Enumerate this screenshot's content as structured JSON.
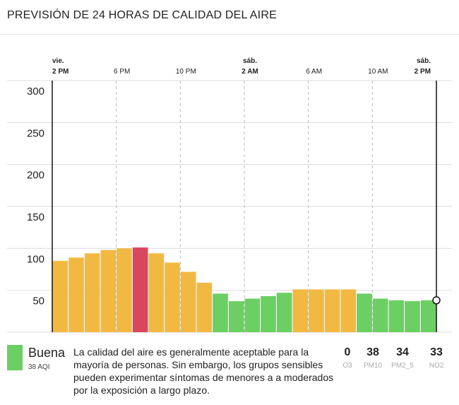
{
  "header": {
    "title": "PREVISIÓN DE 24 HORAS DE CALIDAD DEL AIRE"
  },
  "chart_data": {
    "type": "bar",
    "categories": [
      null,
      null,
      null,
      null,
      null,
      null,
      null,
      null,
      null,
      null,
      null,
      null,
      null,
      null,
      null,
      null,
      null,
      null,
      null,
      null,
      null,
      null,
      null,
      null
    ],
    "values": [
      85,
      89,
      94,
      98,
      100,
      101,
      94,
      83,
      72,
      59,
      46,
      37,
      40,
      43,
      47,
      51,
      51,
      51,
      51,
      46,
      40,
      38,
      37,
      38
    ],
    "colors": [
      "#f2b942",
      "#f2b942",
      "#f2b942",
      "#f2b942",
      "#f2b942",
      "#d9475f",
      "#f2b942",
      "#f2b942",
      "#f2b942",
      "#f2b942",
      "#6ccf63",
      "#6ccf63",
      "#6ccf63",
      "#6ccf63",
      "#6ccf63",
      "#f2b942",
      "#f2b942",
      "#f2b942",
      "#f2b942",
      "#6ccf63",
      "#6ccf63",
      "#6ccf63",
      "#6ccf63",
      "#6ccf63"
    ],
    "xlim": [
      0,
      24
    ],
    "xticks": [
      {
        "value": 0,
        "label": "2 PM",
        "day": "vie."
      },
      {
        "value": 4,
        "label": "6 PM"
      },
      {
        "value": 8,
        "label": "10 PM"
      },
      {
        "value": 12,
        "label": "2 AM",
        "day": "sáb."
      },
      {
        "value": 16,
        "label": "6 AM"
      },
      {
        "value": 20,
        "label": "10 AM"
      },
      {
        "value": 24,
        "label": "2 PM",
        "day": "sáb."
      }
    ],
    "ylim": [
      0,
      300
    ],
    "yticks": [
      50,
      100,
      150,
      200,
      250,
      300
    ],
    "grid": true
  },
  "status": {
    "label": "Buena",
    "aqi": "38 AQI",
    "color": "#6ccf63",
    "description": "La calidad del aire es generalmente aceptable para la mayoría de personas. Sin embargo, los grupos sensibles pueden experimentar síntomas de menores a a moderados por la exposición a largo plazo."
  },
  "pollutants": [
    {
      "value": 0,
      "name": "O3"
    },
    {
      "value": 38,
      "name": "PM10"
    },
    {
      "value": 34,
      "name": "PM2_5"
    },
    {
      "value": 33,
      "name": "NO2"
    }
  ]
}
